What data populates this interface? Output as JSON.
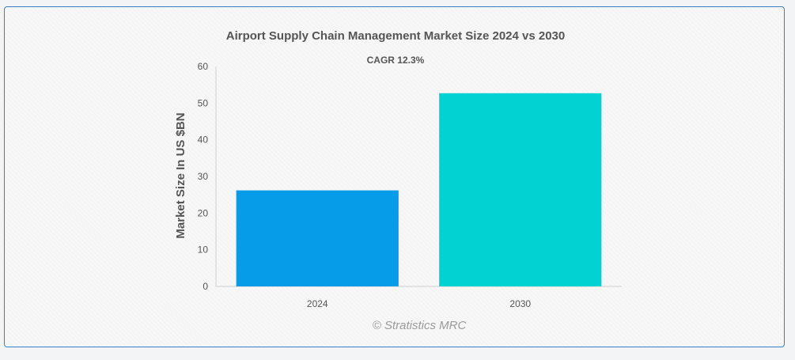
{
  "chart_data": {
    "type": "bar",
    "title": "Airport Supply Chain Management Market Size 2024 vs 2030",
    "subtitle": "CAGR 12.3%",
    "xlabel": "",
    "ylabel": "Market Size In US $BN",
    "categories": [
      "2024",
      "2030"
    ],
    "values": [
      26.2,
      52.7
    ],
    "colors": [
      "#069ce8",
      "#02d2d2"
    ],
    "ylim": [
      0,
      60
    ],
    "yticks": [
      0,
      10,
      20,
      30,
      40,
      50,
      60
    ],
    "grid": false,
    "legend": "none"
  },
  "watermark": "© Stratistics MRC"
}
